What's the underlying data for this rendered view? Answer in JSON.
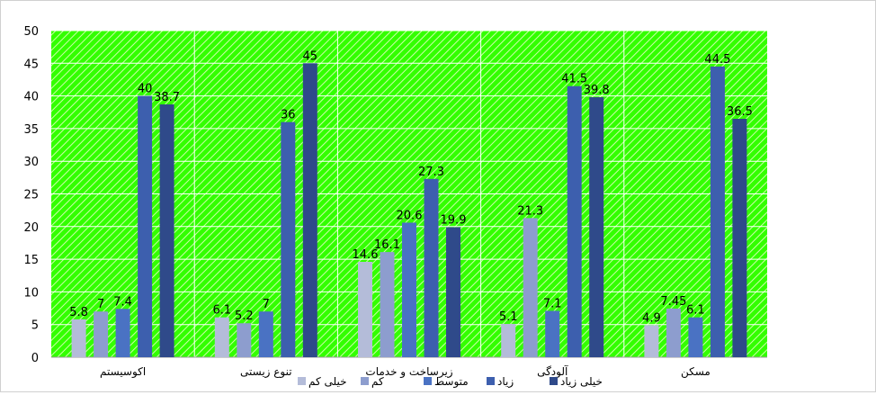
{
  "chart_data": {
    "type": "bar",
    "categories": [
      "اکوسیستم",
      "تنوع زیستی",
      "زیرساخت و خدمات",
      "آلودگی",
      "مسکن"
    ],
    "series": [
      {
        "name": "خیلی کم",
        "color": "#b4bcd9",
        "values": [
          5.8,
          6.1,
          14.6,
          5.1,
          4.9
        ]
      },
      {
        "name": "کم",
        "color": "#8d9dce",
        "values": [
          7,
          5.2,
          16.1,
          21.3,
          7.45
        ]
      },
      {
        "name": "متوسط",
        "color": "#4a72c3",
        "values": [
          7.4,
          7,
          20.6,
          7.1,
          6.1
        ]
      },
      {
        "name": "زیاد",
        "color": "#3d5fae",
        "values": [
          40,
          36,
          27.3,
          41.5,
          44.5
        ]
      },
      {
        "name": "خیلی زیاد",
        "color": "#2f4a8a",
        "values": [
          38.7,
          45,
          19.9,
          39.8,
          36.5
        ]
      }
    ],
    "ylim": [
      0,
      50
    ],
    "yticks": [
      0,
      5,
      10,
      15,
      20,
      25,
      30,
      35,
      40,
      45,
      50
    ],
    "grid": true,
    "plot_background": "#33ff00",
    "legend_position": "bottom"
  }
}
